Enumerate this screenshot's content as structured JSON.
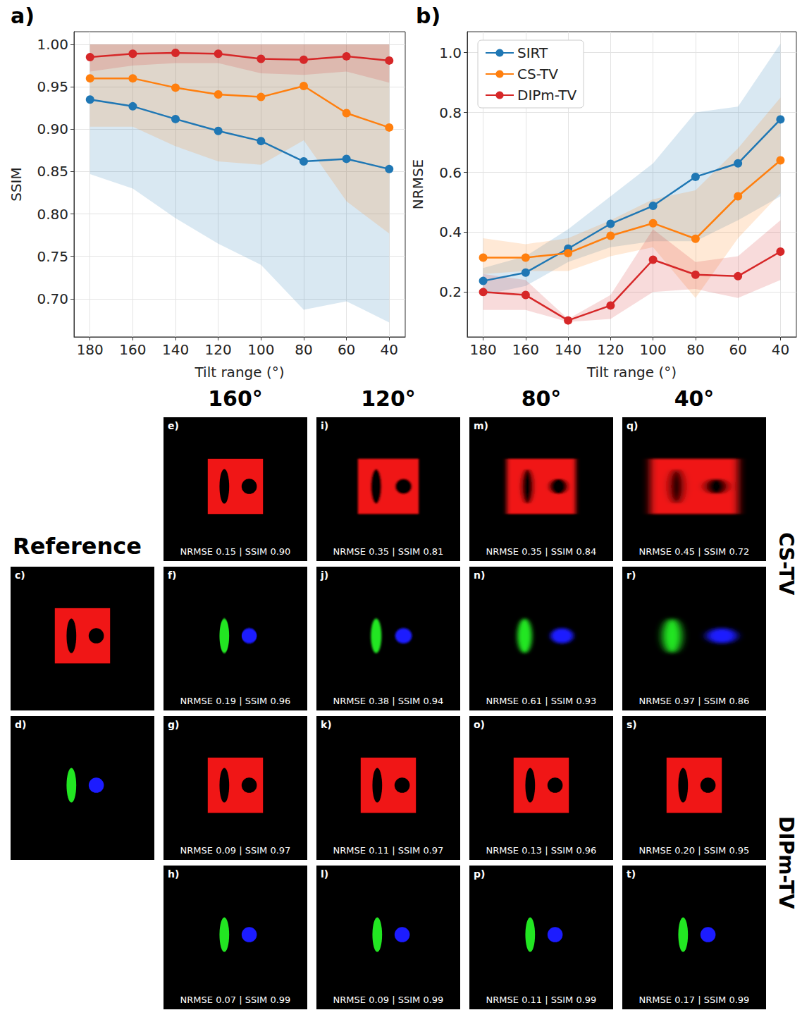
{
  "chart_data": [
    {
      "type": "line",
      "label": "a)",
      "x_label": "Tilt range (°)",
      "y_label": "SSIM",
      "x": [
        180,
        160,
        140,
        120,
        100,
        80,
        60,
        40
      ],
      "xlim": [
        187.5,
        32.5
      ],
      "xticks": [
        180,
        160,
        140,
        120,
        100,
        80,
        60,
        40
      ],
      "ylim": [
        0.655,
        1.015
      ],
      "yticks": [
        {
          "value": 0.7,
          "label": "0.70"
        },
        0.75,
        {
          "value": 0.8,
          "label": "0.80"
        },
        0.85,
        {
          "value": 0.9,
          "label": "0.90"
        },
        0.95,
        {
          "value": 1,
          "label": "1.00"
        }
      ],
      "grid": true,
      "marker": "circle",
      "series": [
        {
          "name": "SIRT",
          "color": "#1f77b4",
          "values": [
            0.935,
            0.927,
            0.912,
            0.898,
            0.886,
            0.862,
            0.865,
            0.853
          ],
          "lower": [
            0.847,
            0.83,
            0.795,
            0.765,
            0.74,
            0.687,
            0.697,
            0.672
          ],
          "upper": [
            1.0,
            1.0,
            1.0,
            1.0,
            1.0,
            1.0,
            1.0,
            1.0
          ]
        },
        {
          "name": "CS-TV",
          "color": "#ff7f0e",
          "values": [
            0.96,
            0.96,
            0.949,
            0.941,
            0.938,
            0.951,
            0.919,
            0.902
          ],
          "lower": [
            0.903,
            0.903,
            0.88,
            0.862,
            0.858,
            0.887,
            0.815,
            0.777
          ],
          "upper": [
            1.0,
            1.0,
            1.0,
            1.0,
            1.0,
            1.0,
            1.0,
            1.0
          ]
        },
        {
          "name": "DIPm-TV",
          "color": "#d62728",
          "values": [
            0.985,
            0.989,
            0.99,
            0.989,
            0.983,
            0.982,
            0.986,
            0.981
          ],
          "lower": [
            0.968,
            0.975,
            0.978,
            0.978,
            0.966,
            0.964,
            0.968,
            0.955
          ],
          "upper": [
            1.0,
            1.0,
            1.0,
            1.0,
            1.0,
            1.0,
            1.0,
            1.0
          ]
        }
      ]
    },
    {
      "type": "line",
      "label": "b)",
      "x_label": "Tilt range (°)",
      "y_label": "NRMSE",
      "x": [
        180,
        160,
        140,
        120,
        100,
        80,
        60,
        40
      ],
      "xlim": [
        187.5,
        32.5
      ],
      "xticks": [
        180,
        160,
        140,
        120,
        100,
        80,
        60,
        40
      ],
      "ylim": [
        0.05,
        1.07
      ],
      "yticks": [
        0.2,
        0.4,
        0.6,
        0.8,
        {
          "value": 1,
          "label": "1.0"
        }
      ],
      "grid": true,
      "marker": "circle",
      "legend": "upper left",
      "series": [
        {
          "name": "SIRT",
          "color": "#1f77b4",
          "values": [
            0.237,
            0.265,
            0.345,
            0.428,
            0.488,
            0.585,
            0.63,
            0.777
          ],
          "lower": [
            0.19,
            0.22,
            0.3,
            0.35,
            0.37,
            0.37,
            0.44,
            0.52
          ],
          "upper": [
            0.28,
            0.32,
            0.41,
            0.52,
            0.63,
            0.8,
            0.82,
            1.03
          ]
        },
        {
          "name": "CS-TV",
          "color": "#ff7f0e",
          "values": [
            0.315,
            0.315,
            0.33,
            0.388,
            0.43,
            0.378,
            0.52,
            0.64
          ],
          "lower": [
            0.26,
            0.27,
            0.27,
            0.32,
            0.35,
            0.18,
            0.38,
            0.53
          ],
          "upper": [
            0.38,
            0.36,
            0.38,
            0.44,
            0.51,
            0.54,
            0.68,
            0.85
          ]
        },
        {
          "name": "DIPm-TV",
          "color": "#d62728",
          "values": [
            0.2,
            0.19,
            0.105,
            0.155,
            0.308,
            0.258,
            0.253,
            0.335
          ],
          "lower": [
            0.14,
            0.14,
            0.1,
            0.11,
            0.2,
            0.21,
            0.18,
            0.24
          ],
          "upper": [
            0.26,
            0.24,
            0.11,
            0.19,
            0.41,
            0.3,
            0.32,
            0.44
          ]
        }
      ]
    }
  ],
  "panels": {
    "columns": [
      "160°",
      "120°",
      "80°",
      "40°"
    ],
    "reference": {
      "title": "Reference",
      "panels": [
        {
          "label": "c)"
        },
        {
          "label": "d)"
        }
      ]
    },
    "groups": [
      {
        "name": "CS-TV",
        "rows": [
          [
            {
              "label": "e)",
              "caption": "NRMSE 0.15 | SSIM 0.90"
            },
            {
              "label": "i)",
              "caption": "NRMSE 0.35 | SSIM 0.81"
            },
            {
              "label": "m)",
              "caption": "NRMSE 0.35 | SSIM 0.84"
            },
            {
              "label": "q)",
              "caption": "NRMSE 0.45 | SSIM 0.72"
            }
          ],
          [
            {
              "label": "f)",
              "caption": "NRMSE 0.19 | SSIM 0.96"
            },
            {
              "label": "j)",
              "caption": "NRMSE 0.38 | SSIM 0.94"
            },
            {
              "label": "n)",
              "caption": "NRMSE 0.61 | SSIM 0.93"
            },
            {
              "label": "r)",
              "caption": "NRMSE 0.97 | SSIM 0.86"
            }
          ]
        ]
      },
      {
        "name": "DIPm-TV",
        "rows": [
          [
            {
              "label": "g)",
              "caption": "NRMSE 0.09 | SSIM 0.97"
            },
            {
              "label": "k)",
              "caption": "NRMSE 0.11 | SSIM 0.97"
            },
            {
              "label": "o)",
              "caption": "NRMSE 0.13 | SSIM 0.96"
            },
            {
              "label": "s)",
              "caption": "NRMSE 0.20 | SSIM 0.95"
            }
          ],
          [
            {
              "label": "h)",
              "caption": "NRMSE 0.07 | SSIM 0.99"
            },
            {
              "label": "l)",
              "caption": "NRMSE 0.09 | SSIM 0.99"
            },
            {
              "label": "p)",
              "caption": "NRMSE 0.11 | SSIM 0.99"
            },
            {
              "label": "t)",
              "caption": "NRMSE 0.17 | SSIM 0.99"
            }
          ]
        ]
      }
    ]
  }
}
